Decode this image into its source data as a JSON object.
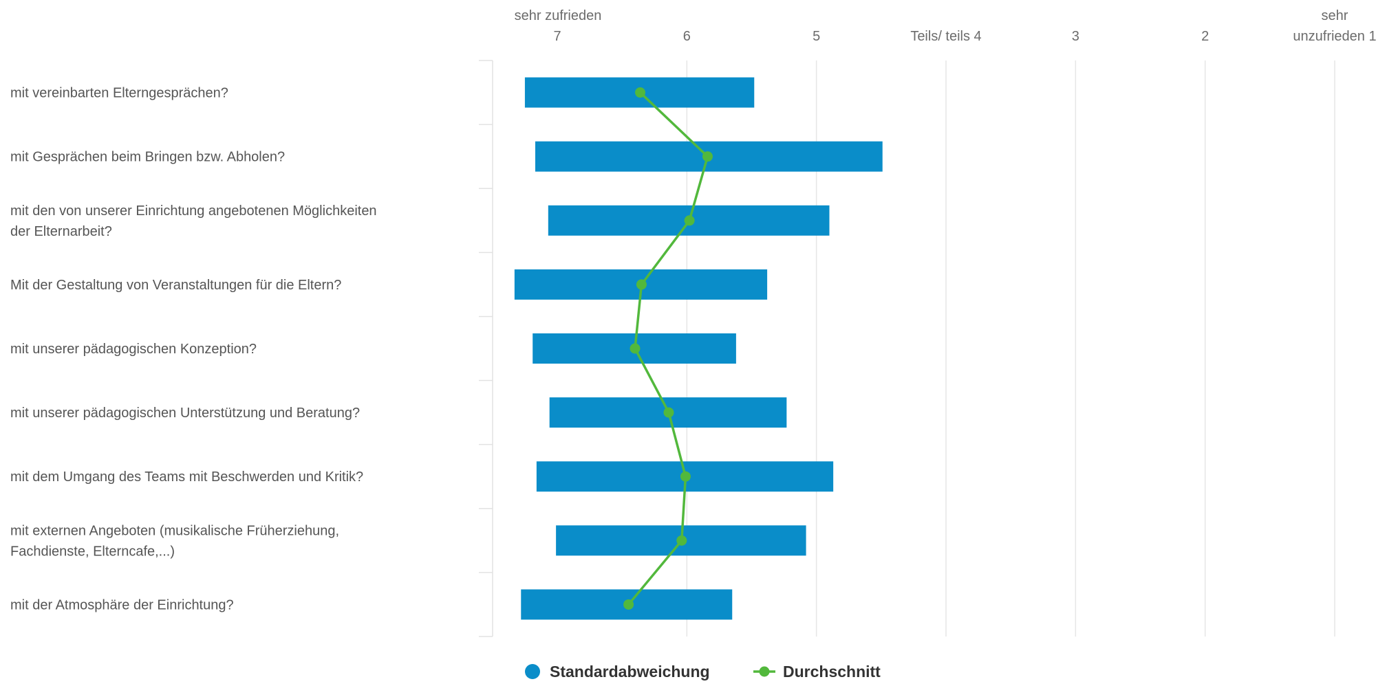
{
  "chart_data": {
    "type": "bar",
    "x_axis": {
      "reversed": true,
      "range": [
        1,
        7.5
      ],
      "ticks": [
        {
          "value": 7,
          "label": "7",
          "label_above": "sehr zufrieden"
        },
        {
          "value": 6,
          "label": "6"
        },
        {
          "value": 5,
          "label": "5"
        },
        {
          "value": 4,
          "label": "Teils/ teils 4"
        },
        {
          "value": 3,
          "label": "3"
        },
        {
          "value": 2,
          "label": "2"
        },
        {
          "value": 1,
          "label": "unzufrieden 1",
          "label_above": "sehr"
        }
      ]
    },
    "grid": true,
    "categories": [
      [
        "mit vereinbarten Elterngesprächen?"
      ],
      [
        "mit Gesprächen beim Bringen bzw. Abholen?"
      ],
      [
        "mit den von unserer Einrichtung angebotenen Möglichkeiten",
        "der Elternarbeit?"
      ],
      [
        "Mit der Gestaltung von Veranstaltungen für die Eltern?"
      ],
      [
        "mit unserer pädagogischen Konzeption?"
      ],
      [
        "mit unserer pädagogischen Unterstützung und Beratung?"
      ],
      [
        "mit dem Umgang des Teams mit Beschwerden und Kritik?"
      ],
      [
        "mit externen Angeboten (musikalische Früherziehung,",
        "Fachdienste, Elterncafe,...)"
      ],
      [
        "mit der Atmosphäre der Einrichtung?"
      ]
    ],
    "series": [
      {
        "name": "Standardabweichung",
        "type": "range-bar",
        "color": "#0a8dc9",
        "ranges": [
          [
            7.25,
            5.48
          ],
          [
            7.17,
            4.49
          ],
          [
            7.07,
            4.9
          ],
          [
            7.33,
            5.38
          ],
          [
            7.19,
            5.62
          ],
          [
            7.06,
            5.23
          ],
          [
            7.16,
            4.87
          ],
          [
            7.01,
            5.08
          ],
          [
            7.28,
            5.65
          ]
        ]
      },
      {
        "name": "Durchschnitt",
        "type": "line",
        "color": "#52b83c",
        "values": [
          6.36,
          5.84,
          5.98,
          6.35,
          6.4,
          6.14,
          6.01,
          6.04,
          6.45
        ]
      }
    ],
    "legend": {
      "position": "bottom"
    }
  }
}
